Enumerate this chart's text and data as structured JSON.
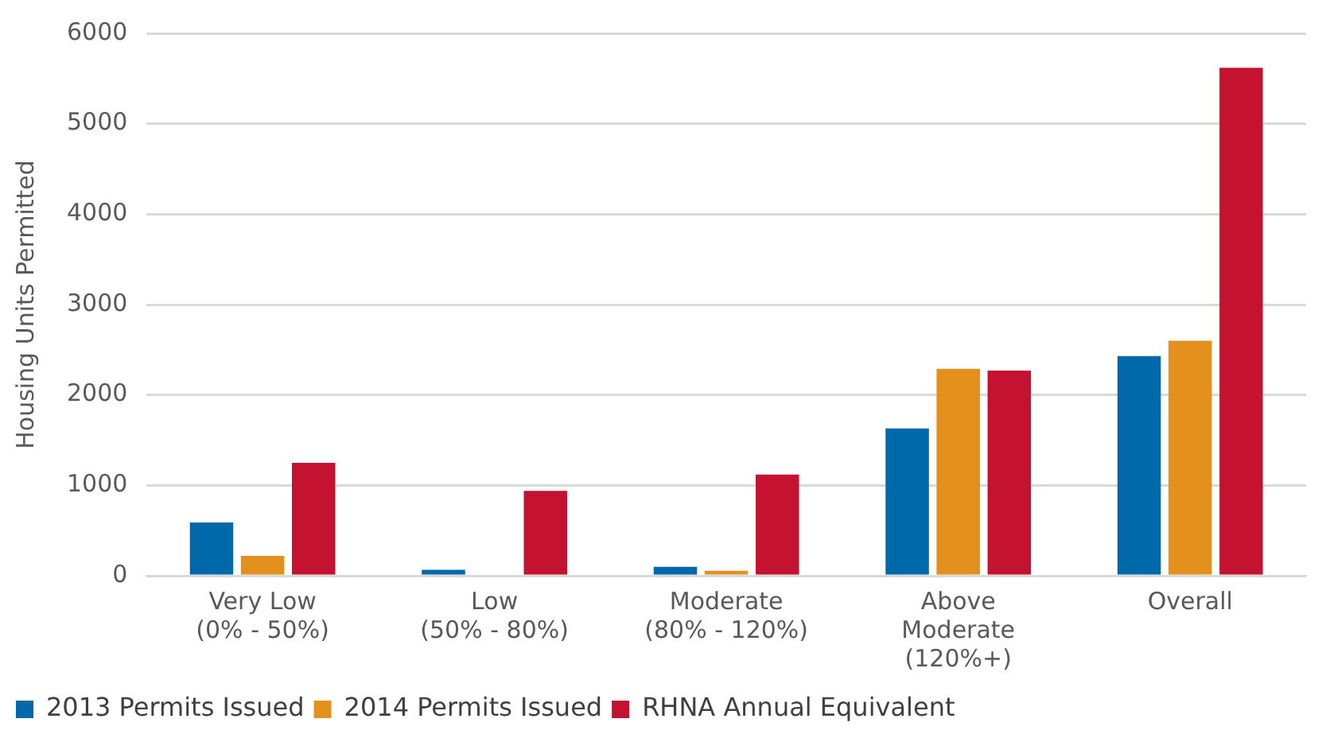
{
  "chart_data": {
    "type": "bar",
    "ylabel": "Housing Units Permitted",
    "categories": [
      "Very Low\n(0% - 50%)",
      "Low\n(50% - 80%)",
      "Moderate\n(80% - 120%)",
      "Above\nModerate\n(120%+)",
      "Overall"
    ],
    "series": [
      {
        "name": "2013 Permits Issued",
        "color": "#0069aa",
        "values": [
          590,
          67,
          100,
          1630,
          2430
        ]
      },
      {
        "name": "2014 Permits Issued",
        "color": "#e3901c",
        "values": [
          220,
          0,
          55,
          2290,
          2600
        ]
      },
      {
        "name": "RHNA Annual Equivalent",
        "color": "#c41230",
        "values": [
          1250,
          940,
          1120,
          2270,
          5620
        ]
      }
    ],
    "ylim": [
      0,
      6000
    ],
    "yticks": [
      0,
      1000,
      2000,
      3000,
      4000,
      5000,
      6000
    ],
    "grid": "y",
    "legend": "bottom"
  }
}
